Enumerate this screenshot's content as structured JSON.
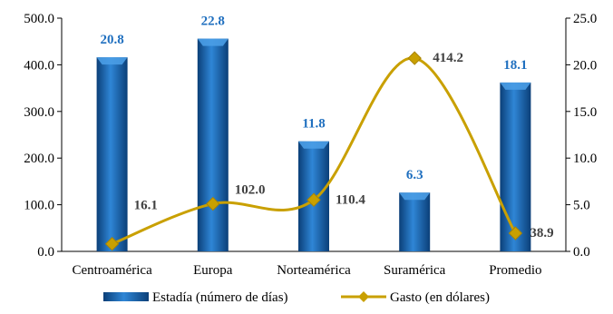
{
  "chart_data": {
    "type": "bar",
    "categories": [
      "Centroamérica",
      "Europa",
      "Norteamérica",
      "Suramérica",
      "Promedio"
    ],
    "series": [
      {
        "name": "Estadía (número de días)",
        "chart": "bar",
        "axis": "right",
        "values": [
          20.8,
          22.8,
          11.8,
          6.3,
          18.1
        ],
        "labels": [
          "20.8",
          "22.8",
          "11.8",
          "6.3",
          "18.1"
        ],
        "color": "#1f6fbf"
      },
      {
        "name": "Gasto (en dólares)",
        "chart": "line",
        "axis": "left",
        "values": [
          16.1,
          102.0,
          110.4,
          414.2,
          38.9
        ],
        "labels": [
          "16.1",
          "102.0",
          "110.4",
          "414.2",
          "38.9"
        ],
        "color": "#c9a000"
      }
    ],
    "left_axis": {
      "min": 0,
      "max": 500,
      "ticks": [
        "0.0",
        "100.0",
        "200.0",
        "300.0",
        "400.0",
        "500.0"
      ]
    },
    "right_axis": {
      "min": 0,
      "max": 25,
      "ticks": [
        "0.0",
        "5.0",
        "10.0",
        "15.0",
        "20.0",
        "25.0"
      ]
    },
    "grid": false,
    "legend_position": "bottom",
    "bar_label_color": "#1f6fbf",
    "line_label_color": "#404040"
  }
}
